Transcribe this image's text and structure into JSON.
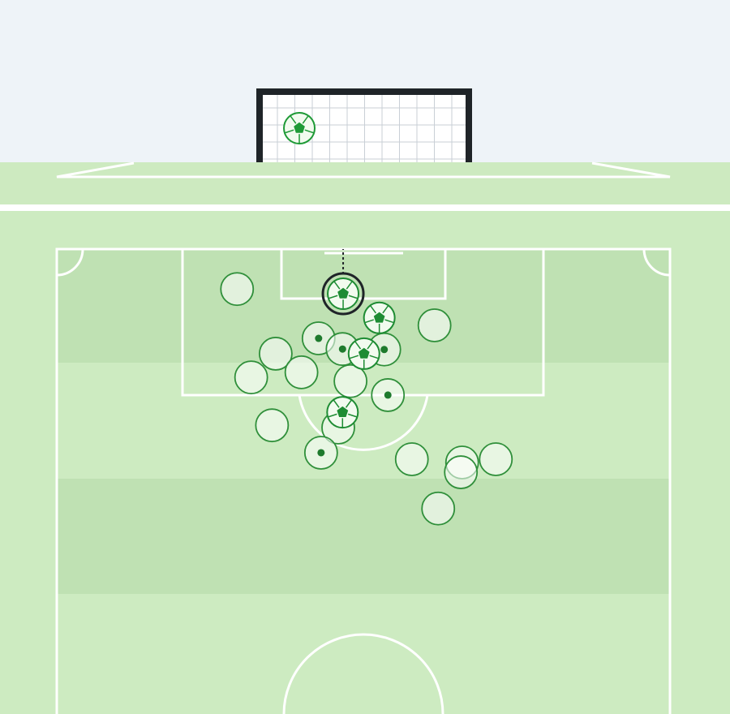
{
  "chart_data": {
    "type": "scatter",
    "xlim": [
      0,
      100
    ],
    "ylim": [
      0,
      100
    ],
    "selected": {
      "series": 0,
      "index": 0
    },
    "goal_mouth": {
      "x": 19.0,
      "y": 51.7
    },
    "series": [
      {
        "marker": "ball",
        "color": "#1e8c33",
        "x": [
          46.7,
          52.6,
          50.1,
          46.6
        ],
        "y": [
          9.6,
          14.8,
          22.5,
          35.1
        ]
      },
      {
        "marker": "dot",
        "color": "#2f8f3a",
        "x": [
          42.7,
          46.6,
          53.4,
          54.0,
          43.1
        ],
        "y": [
          19.2,
          21.5,
          21.6,
          31.4,
          43.8
        ]
      },
      {
        "marker": "plain",
        "color": "#2f8f3a",
        "x": [
          29.4,
          61.6,
          35.7,
          31.7,
          39.9,
          47.9,
          45.9,
          35.1,
          57.9,
          66.1,
          65.9,
          71.6,
          62.2
        ],
        "y": [
          8.6,
          16.4,
          22.5,
          27.6,
          26.5,
          28.4,
          38.4,
          37.9,
          45.2,
          45.9,
          48.0,
          45.2,
          55.8
        ]
      }
    ]
  }
}
